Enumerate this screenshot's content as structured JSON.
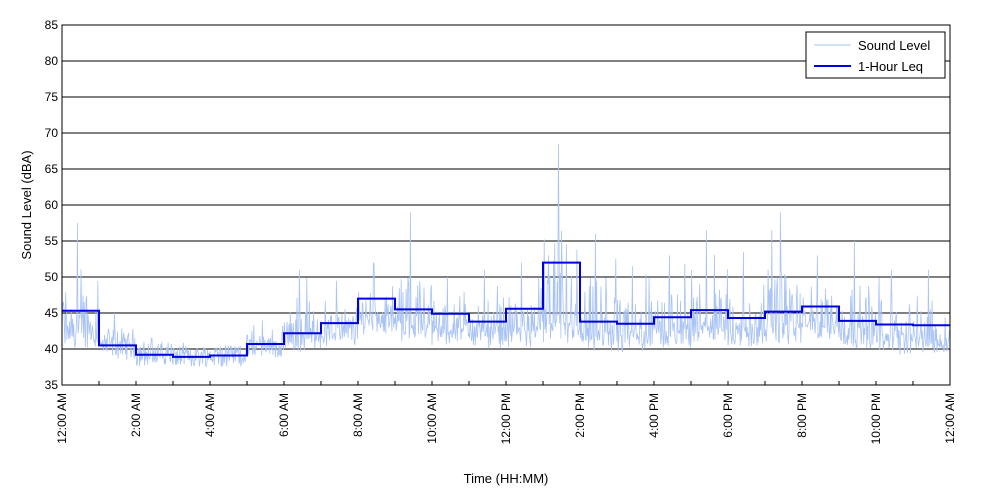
{
  "chart_data": {
    "type": "line",
    "title": "",
    "xlabel": "Time (HH:MM)",
    "ylabel": "Sound Level (dBA)",
    "ylim": [
      35,
      85
    ],
    "yticks": [
      35,
      40,
      45,
      50,
      55,
      60,
      65,
      70,
      75,
      80,
      85
    ],
    "xlim": [
      0,
      24
    ],
    "xticks": [
      {
        "hour": 0,
        "label": "12:00 AM"
      },
      {
        "hour": 2,
        "label": "2:00 AM"
      },
      {
        "hour": 4,
        "label": "4:00 AM"
      },
      {
        "hour": 6,
        "label": "6:00 AM"
      },
      {
        "hour": 8,
        "label": "8:00 AM"
      },
      {
        "hour": 10,
        "label": "10:00 AM"
      },
      {
        "hour": 12,
        "label": "12:00 PM"
      },
      {
        "hour": 14,
        "label": "2:00 PM"
      },
      {
        "hour": 16,
        "label": "4:00 PM"
      },
      {
        "hour": 18,
        "label": "6:00 PM"
      },
      {
        "hour": 20,
        "label": "8:00 PM"
      },
      {
        "hour": 22,
        "label": "10:00 PM"
      },
      {
        "hour": 24,
        "label": "12:00 AM"
      }
    ],
    "grid": "horizontal",
    "legend_position": "top-right",
    "series": [
      {
        "name": "Sound Level",
        "color": "#a9c3f5",
        "style": "thin",
        "hourly_baseline": [
          41.5,
          40.0,
          39.0,
          38.8,
          39.0,
          40.0,
          41.0,
          41.5,
          43.5,
          42.5,
          42.0,
          41.5,
          41.5,
          42.0,
          41.0,
          41.0,
          41.5,
          42.0,
          41.5,
          42.0,
          42.5,
          41.5,
          40.5,
          40.5
        ],
        "hourly_peak": [
          57.5,
          45.0,
          41.5,
          40.0,
          40.5,
          44.0,
          51.0,
          49.5,
          52.0,
          59.0,
          50.0,
          51.0,
          52.0,
          68.5,
          56.0,
          51.5,
          53.0,
          56.5,
          53.5,
          59.0,
          53.0,
          55.0,
          51.0,
          51.0
        ]
      },
      {
        "name": "1-Hour Leq",
        "color": "#0000e0",
        "style": "step",
        "hours": [
          0,
          1,
          2,
          3,
          4,
          5,
          6,
          7,
          8,
          9,
          10,
          11,
          12,
          13,
          14,
          15,
          16,
          17,
          18,
          19,
          20,
          21,
          22,
          23
        ],
        "values": [
          45.3,
          40.5,
          39.2,
          38.9,
          39.1,
          40.7,
          42.2,
          43.6,
          47.0,
          45.5,
          44.9,
          43.8,
          45.6,
          52.0,
          43.8,
          43.5,
          44.4,
          45.4,
          44.3,
          45.2,
          45.9,
          43.9,
          43.4,
          43.3
        ]
      }
    ]
  }
}
